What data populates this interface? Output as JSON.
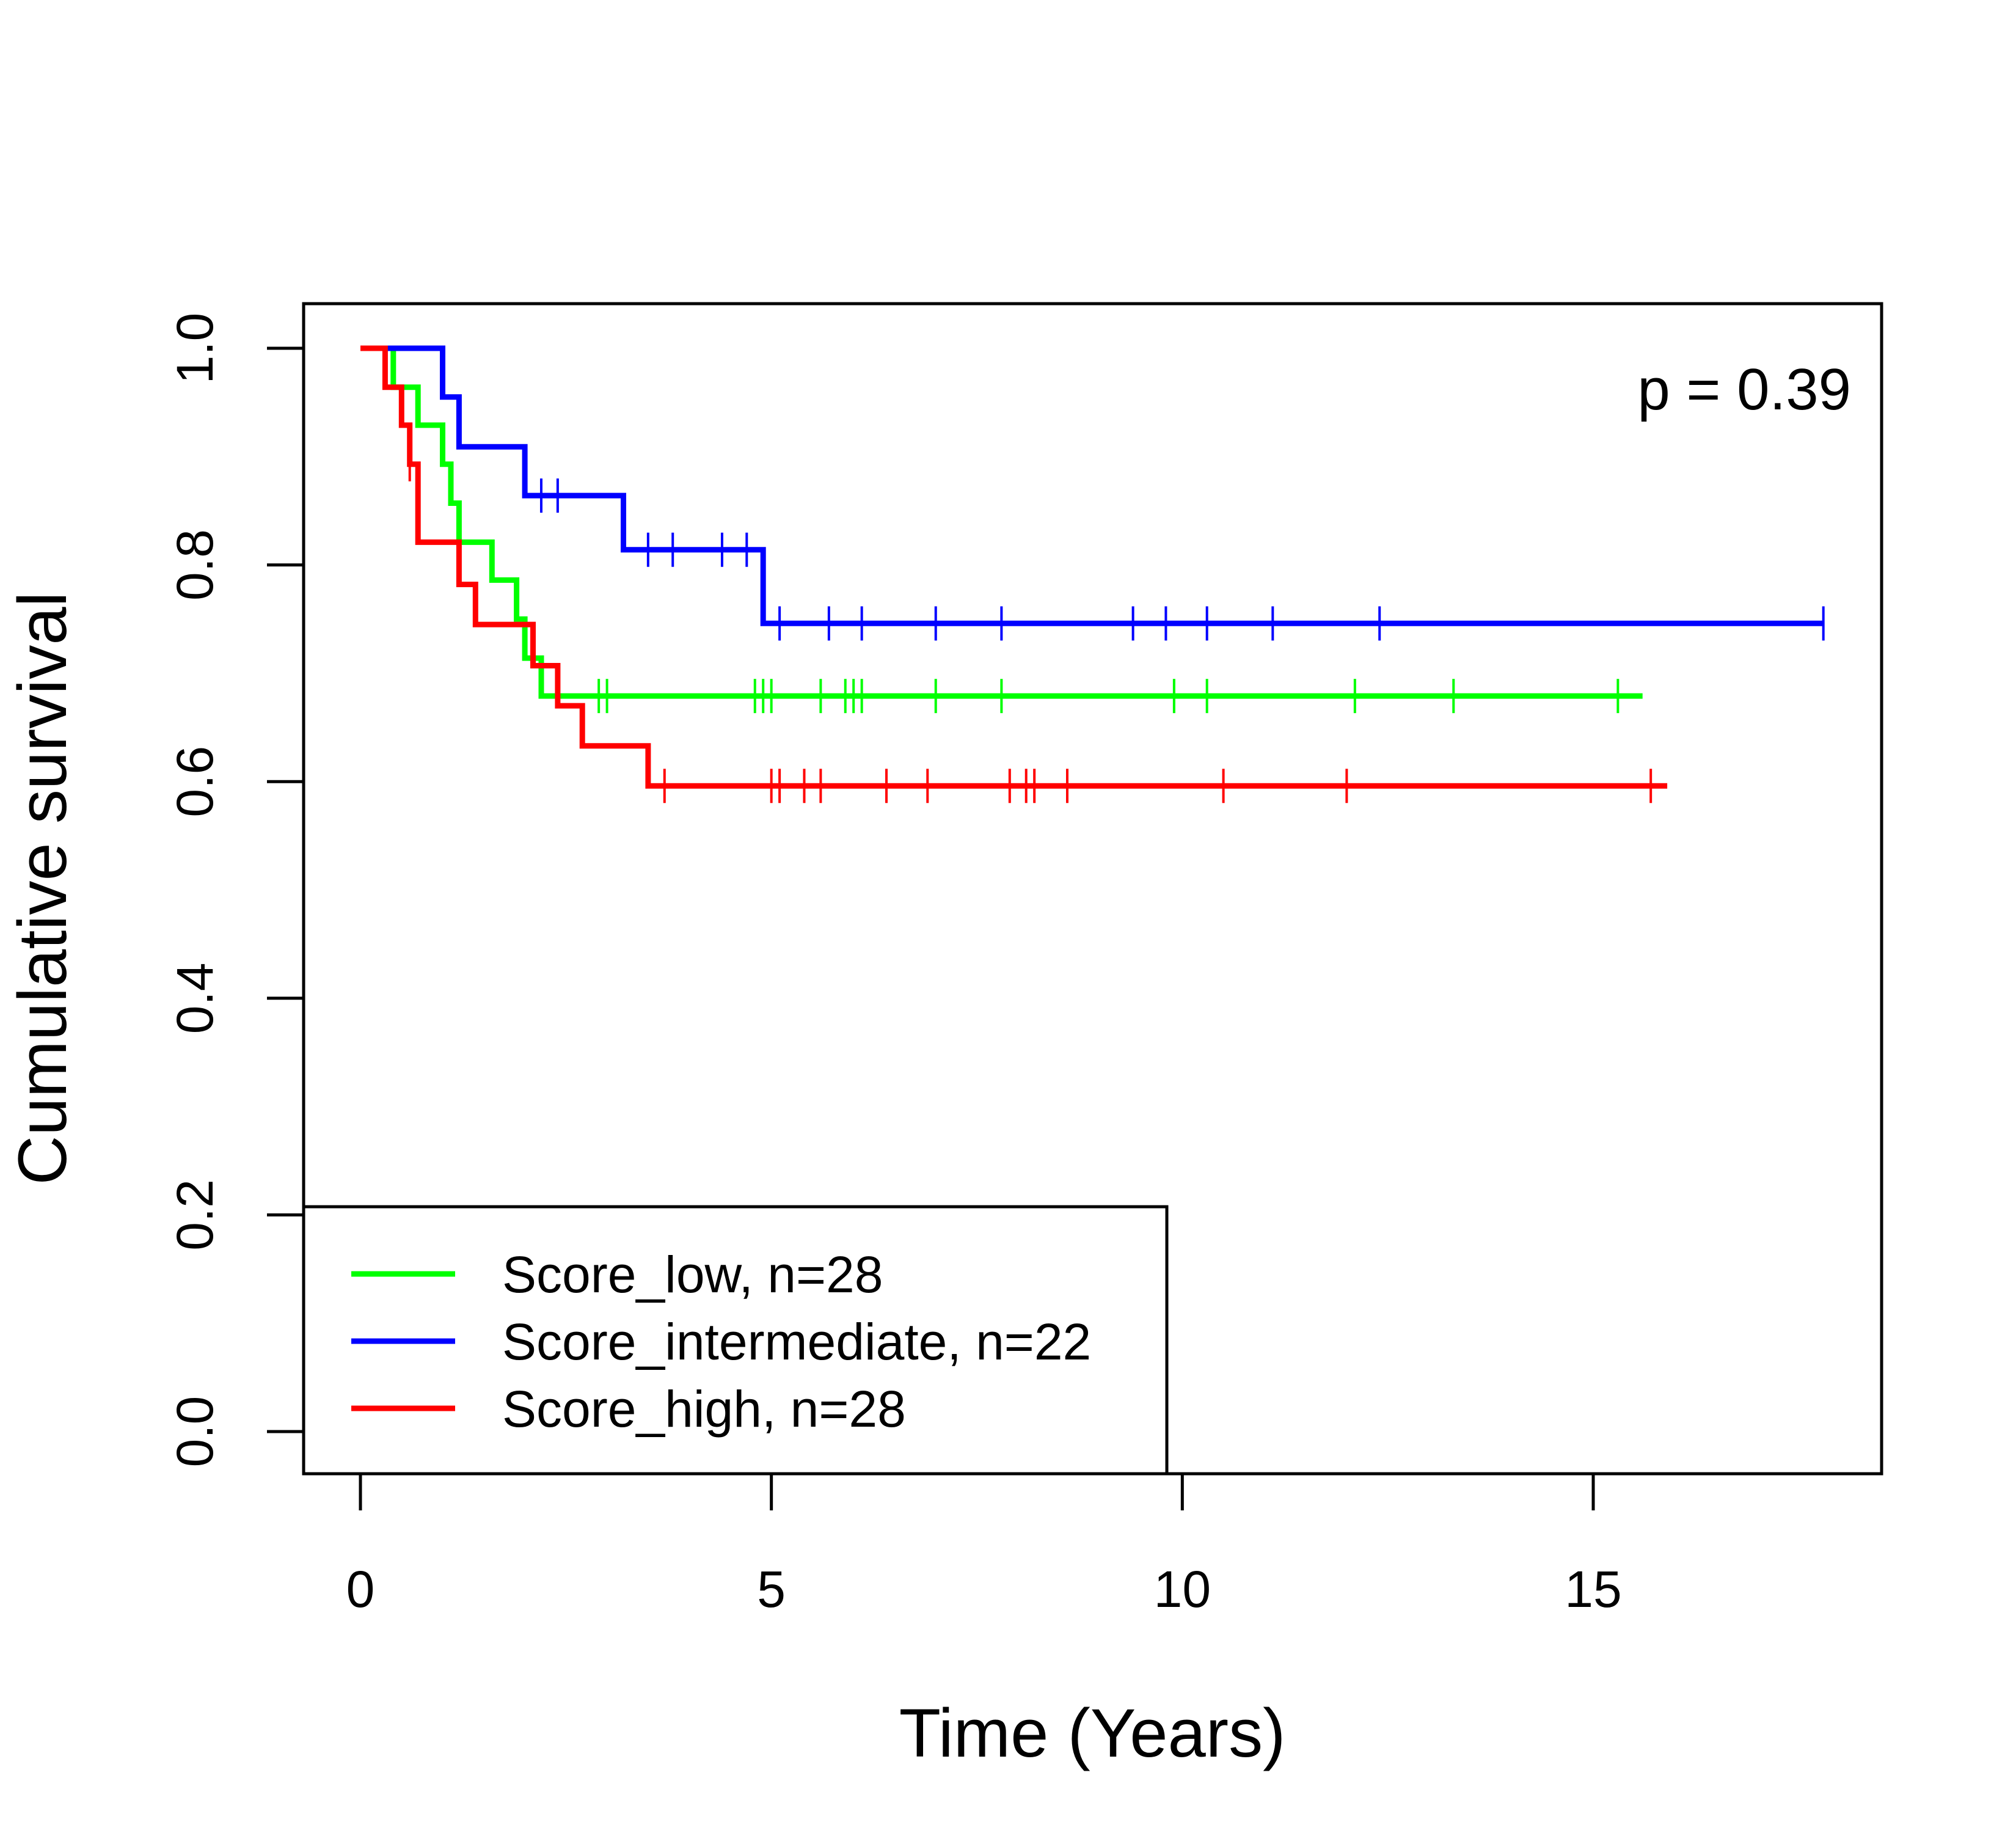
{
  "chart_data": {
    "type": "line",
    "title": "",
    "xlabel": "Time (Years)",
    "ylabel": "Cumulative survival",
    "xlim": [
      -0.7,
      18.5
    ],
    "ylim": [
      -0.04,
      1.04
    ],
    "x_ticks": [
      0,
      5,
      10,
      15
    ],
    "x_tick_labels": [
      "0",
      "5",
      "10",
      "15"
    ],
    "y_ticks": [
      0.0,
      0.2,
      0.4,
      0.6,
      0.8,
      1.0
    ],
    "y_tick_labels": [
      "0.0",
      "0.2",
      "0.4",
      "0.6",
      "0.8",
      "1.0"
    ],
    "grid": false,
    "legend_position": "bottom-left",
    "annotation": "p = 0.39",
    "series": [
      {
        "name": "Score_low, n=28",
        "color": "#00ff00",
        "steps": [
          [
            0,
            1.0
          ],
          [
            0.3,
            1.0
          ],
          [
            0.4,
            0.964
          ],
          [
            0.7,
            0.929
          ],
          [
            1.0,
            0.893
          ],
          [
            1.1,
            0.857
          ],
          [
            1.2,
            0.821
          ],
          [
            1.6,
            0.786
          ],
          [
            1.9,
            0.75
          ],
          [
            2.0,
            0.714
          ],
          [
            2.2,
            0.679
          ],
          [
            15.6,
            0.679
          ]
        ],
        "censor_x": [
          2.9,
          3.0,
          4.8,
          4.9,
          5.0,
          5.6,
          5.9,
          6.0,
          6.1,
          7.0,
          7.8,
          9.9,
          10.3,
          12.1,
          13.3,
          15.3
        ]
      },
      {
        "name": "Score_intermediate, n=22",
        "color": "#0000ff",
        "steps": [
          [
            0,
            1.0
          ],
          [
            1.0,
            1.0
          ],
          [
            1.0,
            0.955
          ],
          [
            1.2,
            0.909
          ],
          [
            2.0,
            0.864
          ],
          [
            3.2,
            0.814
          ],
          [
            4.9,
            0.746
          ],
          [
            17.8,
            0.746
          ]
        ],
        "censor_x": [
          2.2,
          2.4,
          3.5,
          3.8,
          4.4,
          4.7,
          5.1,
          5.7,
          6.1,
          7.0,
          7.8,
          9.4,
          9.8,
          10.3,
          11.1,
          12.4,
          17.8
        ]
      },
      {
        "name": "Score_high, n=28",
        "color": "#ff0000",
        "steps": [
          [
            0,
            1.0
          ],
          [
            0.3,
            1.0
          ],
          [
            0.3,
            0.964
          ],
          [
            0.5,
            0.929
          ],
          [
            0.6,
            0.893
          ],
          [
            0.7,
            0.821
          ],
          [
            1.2,
            0.782
          ],
          [
            1.4,
            0.745
          ],
          [
            2.1,
            0.707
          ],
          [
            2.4,
            0.67
          ],
          [
            2.7,
            0.633
          ],
          [
            3.5,
            0.596
          ],
          [
            15.9,
            0.596
          ]
        ],
        "censor_x": [
          0.6,
          3.7,
          5.0,
          5.1,
          5.4,
          5.6,
          6.4,
          6.9,
          7.9,
          8.1,
          8.2,
          8.6,
          10.5,
          12.0,
          15.7
        ]
      }
    ]
  }
}
